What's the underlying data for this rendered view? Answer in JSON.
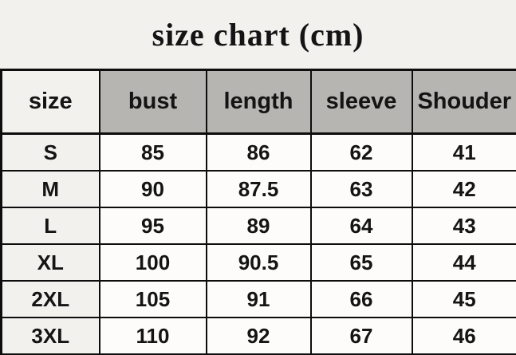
{
  "title": "size chart (cm)",
  "chart_data": {
    "type": "table",
    "title": "size chart (cm)",
    "unit_label": "cm",
    "columns": [
      "size",
      "bust",
      "length",
      "sleeve",
      "Shouder"
    ],
    "rows": [
      [
        "S",
        "85",
        "86",
        "62",
        "41"
      ],
      [
        "M",
        "90",
        "87.5",
        "63",
        "42"
      ],
      [
        "L",
        "95",
        "89",
        "64",
        "43"
      ],
      [
        "XL",
        "100",
        "90.5",
        "65",
        "44"
      ],
      [
        "2XL",
        "105",
        "91",
        "66",
        "45"
      ],
      [
        "3XL",
        "110",
        "92",
        "67",
        "46"
      ]
    ]
  },
  "colors": {
    "page_bg": "#f2f1ee",
    "header_fill": "#b6b5b2",
    "size_col_fill": "#f2f1ee",
    "cell_fill": "#fdfcfa",
    "border": "#0d0d0d",
    "text": "#141414"
  }
}
